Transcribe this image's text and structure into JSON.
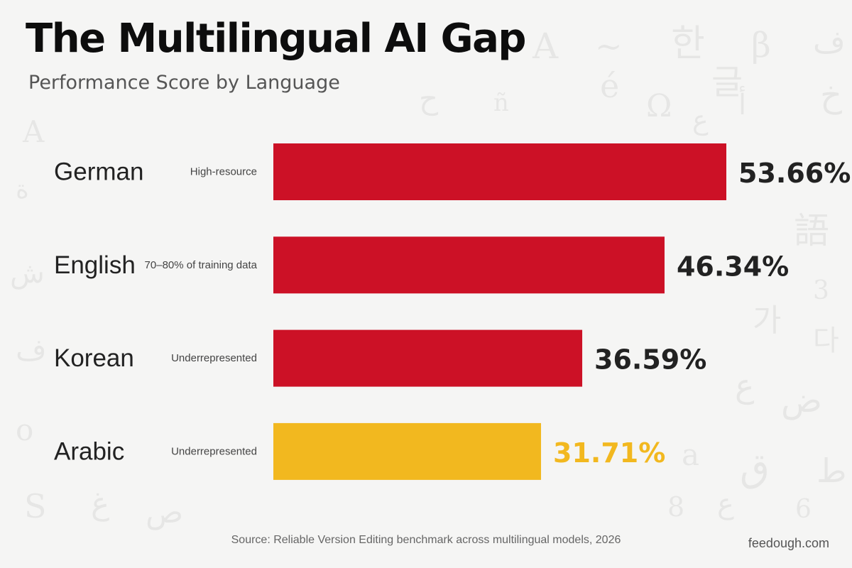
{
  "title": "The Multilingual AI Gap",
  "subtitle": "Performance Score by Language",
  "chart_data": {
    "type": "bar",
    "orientation": "horizontal",
    "title": "The Multilingual AI Gap",
    "subtitle": "Performance Score by Language",
    "xlabel": "",
    "ylabel": "",
    "unit": "%",
    "grid": false,
    "legend": "none",
    "xlim": [
      0,
      60
    ],
    "categories": [
      "German",
      "English",
      "Korean",
      "Arabic"
    ],
    "notes": [
      "High-resource",
      "70–80% of training data",
      "Underrepresented",
      "Underrepresented"
    ],
    "values": [
      53.66,
      46.34,
      36.59,
      31.71
    ],
    "value_labels": [
      "53.66%",
      "46.34%",
      "36.59%",
      "31.71%"
    ],
    "colors": [
      "#cc1126",
      "#cc1126",
      "#cc1126",
      "#f2b81f"
    ],
    "value_label_colors": [
      "#222222",
      "#222222",
      "#222222",
      "#f2b81f"
    ]
  },
  "source": "Source: Reliable Version Editing benchmark across multilingual models, 2026",
  "brand": "feedough.com",
  "background_glyphs": [
    "A",
    "~",
    "한",
    "β",
    "ف",
    "é",
    "글",
    "خ",
    "ح",
    "ñ",
    "أ",
    "Ω",
    "ع",
    "A",
    "ة",
    "語",
    "ش",
    "3",
    "가",
    "다",
    "ف",
    "ع",
    "ض",
    "o",
    "a",
    "ق",
    "ط",
    "S",
    "غ",
    "ص",
    "8",
    "ع",
    "6"
  ]
}
